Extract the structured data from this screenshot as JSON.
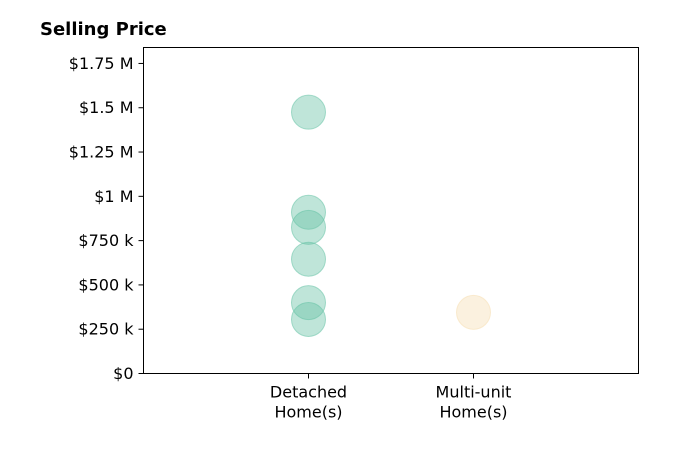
{
  "chart_data": {
    "type": "scatter",
    "title": "Selling Price",
    "xlabel": "",
    "ylabel": "",
    "categories": [
      [
        "Detached",
        "Home(s)"
      ],
      [
        "Multi-unit",
        "Home(s)"
      ]
    ],
    "y_ticks": [
      {
        "value": 0,
        "label": "$0"
      },
      {
        "value": 250000,
        "label": "$250 k"
      },
      {
        "value": 500000,
        "label": "$500 k"
      },
      {
        "value": 750000,
        "label": "$750 k"
      },
      {
        "value": 1000000,
        "label": "$1 M"
      },
      {
        "value": 1250000,
        "label": "$1.25 M"
      },
      {
        "value": 1500000,
        "label": "$1.5 M"
      },
      {
        "value": 1750000,
        "label": "$1.75 M"
      }
    ],
    "ylim": [
      0,
      1840000
    ],
    "grid": false,
    "series": [
      {
        "category": 0,
        "color": "#66c2a5",
        "values": [
          1475000,
          910000,
          825000,
          645000,
          400000,
          305000
        ]
      },
      {
        "category": 1,
        "color": "#f5deb3",
        "values": [
          345000
        ]
      }
    ]
  }
}
